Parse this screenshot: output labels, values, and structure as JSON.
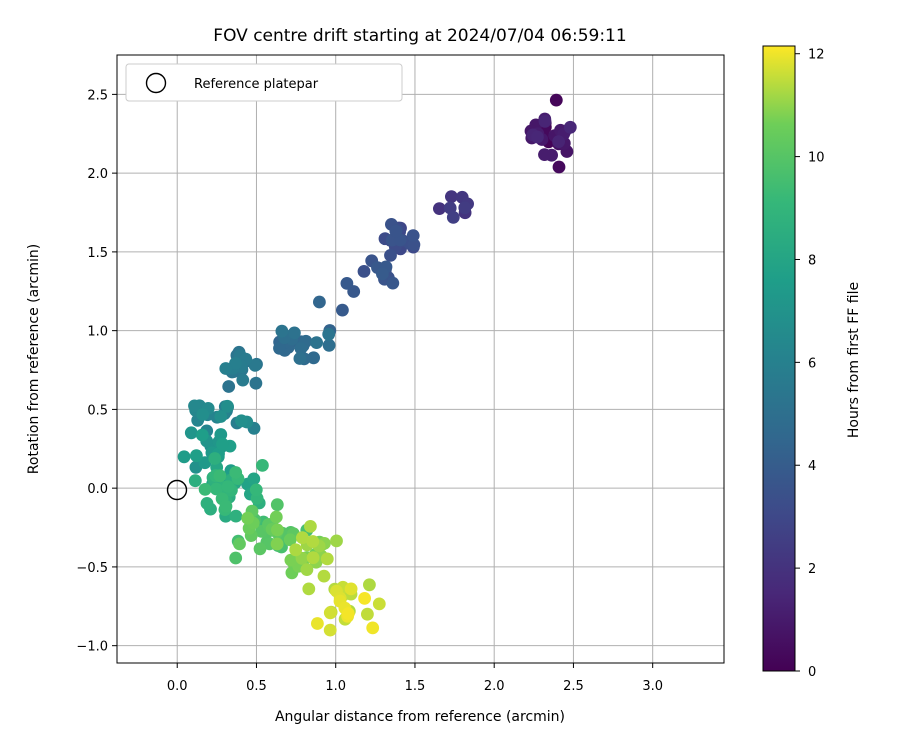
{
  "chart_data": {
    "type": "scatter",
    "title": "FOV centre drift starting at 2024/07/04 06:59:11",
    "xlabel": "Angular distance from reference (arcmin)",
    "ylabel": "Rotation from reference (arcmin)",
    "xlim": [
      -0.38,
      3.45
    ],
    "ylim": [
      -1.11,
      2.75
    ],
    "x_ticks": [
      "0.0",
      "0.5",
      "1.0",
      "1.5",
      "2.0",
      "2.5",
      "3.0"
    ],
    "x_tick_values": [
      0,
      0.5,
      1.0,
      1.5,
      2.0,
      2.5,
      3.0
    ],
    "y_ticks": [
      "−1.0",
      "−0.5",
      "0.0",
      "0.5",
      "1.0",
      "1.5",
      "2.0",
      "2.5"
    ],
    "y_tick_values": [
      -1.0,
      -0.5,
      0,
      0.5,
      1.0,
      1.5,
      2.0,
      2.5
    ],
    "grid": true,
    "colormap": "viridis",
    "colorbar": {
      "label": "Hours from first FF file",
      "range": [
        0,
        12.15
      ],
      "ticks": [
        "0",
        "2",
        "4",
        "6",
        "8",
        "10",
        "12"
      ],
      "tick_values": [
        0,
        2,
        4,
        6,
        8,
        10,
        12
      ]
    },
    "legend": {
      "entries": [
        "Reference platepar"
      ],
      "position": "upper-left"
    },
    "reference_point": {
      "x": 0.0,
      "y": 0.0,
      "marker": "open-circle"
    },
    "clusters": [
      {
        "x": 2.35,
        "y": 2.2,
        "sx": 0.12,
        "sy": 0.14,
        "n": 30,
        "t0": 0.0,
        "t1": 1.5
      },
      {
        "x": 1.75,
        "y": 1.8,
        "sx": 0.15,
        "sy": 0.08,
        "n": 8,
        "t0": 2.0,
        "t1": 2.6
      },
      {
        "x": 1.4,
        "y": 1.6,
        "sx": 0.1,
        "sy": 0.09,
        "n": 18,
        "t0": 2.8,
        "t1": 3.6
      },
      {
        "x": 1.3,
        "y": 1.35,
        "sx": 0.1,
        "sy": 0.12,
        "n": 10,
        "t0": 3.3,
        "t1": 3.9
      },
      {
        "x": 1.05,
        "y": 1.2,
        "sx": 0.06,
        "sy": 0.08,
        "n": 3,
        "t0": 3.6,
        "t1": 4.0
      },
      {
        "x": 0.75,
        "y": 0.95,
        "sx": 0.12,
        "sy": 0.1,
        "n": 25,
        "t0": 4.3,
        "t1": 5.3
      },
      {
        "x": 0.4,
        "y": 0.75,
        "sx": 0.1,
        "sy": 0.09,
        "n": 18,
        "t0": 5.2,
        "t1": 5.9
      },
      {
        "x": 0.25,
        "y": 0.45,
        "sx": 0.12,
        "sy": 0.09,
        "n": 20,
        "t0": 5.8,
        "t1": 6.8
      },
      {
        "x": 0.2,
        "y": 0.25,
        "sx": 0.1,
        "sy": 0.1,
        "n": 18,
        "t0": 6.7,
        "t1": 7.7
      },
      {
        "x": 0.3,
        "y": 0.0,
        "sx": 0.14,
        "sy": 0.14,
        "n": 35,
        "t0": 7.8,
        "t1": 9.3
      },
      {
        "x": 0.55,
        "y": -0.25,
        "sx": 0.15,
        "sy": 0.13,
        "n": 35,
        "t0": 9.3,
        "t1": 10.8
      },
      {
        "x": 0.85,
        "y": -0.4,
        "sx": 0.15,
        "sy": 0.12,
        "n": 25,
        "t0": 10.6,
        "t1": 11.4
      },
      {
        "x": 1.05,
        "y": -0.72,
        "sx": 0.14,
        "sy": 0.12,
        "n": 22,
        "t0": 11.3,
        "t1": 12.1
      }
    ]
  }
}
